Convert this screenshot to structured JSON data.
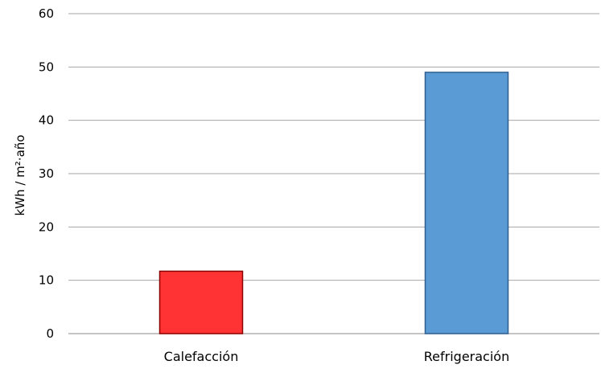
{
  "chart_data": {
    "type": "bar",
    "title": "",
    "xlabel": "",
    "ylabel": "kWh / m²·año",
    "categories": [
      "Calefacción",
      "Refrigeración"
    ],
    "values": [
      11.7,
      49
    ],
    "ylim": [
      0,
      60
    ],
    "yticks": [
      0,
      10,
      20,
      30,
      40,
      50,
      60
    ],
    "grid": true,
    "legend": "none",
    "bar_colors": [
      "#ff3333",
      "#5b9bd5"
    ],
    "bar_edge_colors": [
      "#8b0000",
      "#2f5f8f"
    ]
  }
}
